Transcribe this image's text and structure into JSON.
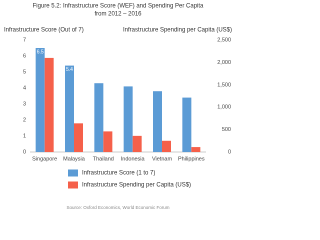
{
  "chart_data": {
    "type": "bar",
    "title": [
      "Figure 5.2:  Infrastructure Score (WEF) and Spending Per Capita",
      "from 2012 – 2016"
    ],
    "y_label": "Infrastructure Score (Out of 7)",
    "y2_label": "Infrastructure Spending per Capita (US$)",
    "source": "Source: Oxford Economics, World Economic Forum",
    "categories": [
      "Singapore",
      "Malaysia",
      "Thailand",
      "Indonesia",
      "Vietnam",
      "Philippines"
    ],
    "series": [
      {
        "name": "Infrastructure Score (1 to 7)",
        "color": "#5b9bd5",
        "values": [
          6.5,
          5.4,
          4.3,
          4.1,
          3.8,
          3.4
        ],
        "value_labels": [
          "6.5",
          "5.4",
          null,
          null,
          null,
          null
        ]
      },
      {
        "name": "Infrastructure Spending per Capita (US$)",
        "color": "#f5604a",
        "axis": "y2",
        "values": [
          2100,
          640,
          460,
          360,
          250,
          110
        ]
      }
    ],
    "ylim": [
      0,
      7
    ],
    "yticks": [
      0,
      1,
      2,
      3,
      4,
      5,
      6,
      7
    ],
    "y2lim": [
      0,
      2500
    ],
    "y2ticks": [
      0,
      500,
      {
        "value": 1000,
        "label": "1,000"
      },
      {
        "value": 1500,
        "label": "1,500"
      },
      {
        "value": 2000,
        "label": "2,000"
      },
      {
        "value": 2500,
        "label": "2,500"
      }
    ]
  }
}
